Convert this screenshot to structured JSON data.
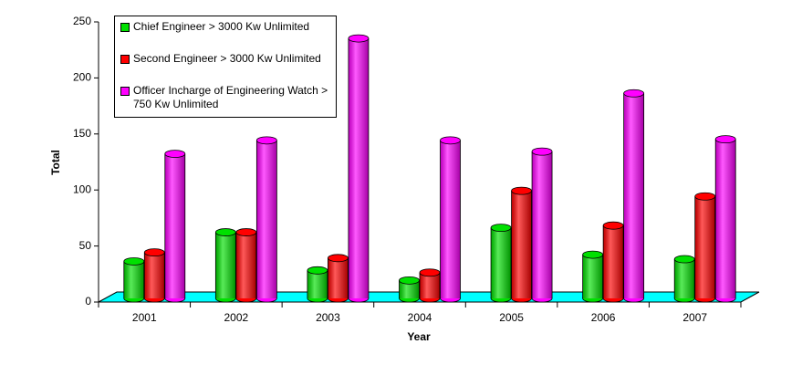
{
  "chart_data": {
    "type": "bar3d",
    "x_label": "Year",
    "y_label": "Total",
    "categories": [
      "2001",
      "2002",
      "2003",
      "2004",
      "2005",
      "2006",
      "2007"
    ],
    "series": [
      {
        "name": "Chief Engineer > 3000 Kw Unlimited",
        "color": "#00e000",
        "values": [
          33,
          59,
          25,
          16,
          63,
          39,
          35
        ]
      },
      {
        "name": "Second Engineer > 3000 Kw Unlimited",
        "color": "#ff0000",
        "values": [
          41,
          59,
          36,
          23,
          96,
          65,
          91
        ]
      },
      {
        "name": "Officer Incharge of Engineering Watch > 750 Kw Unlimited",
        "color": "#ff00ff",
        "values": [
          129,
          141,
          232,
          141,
          131,
          183,
          142
        ]
      }
    ],
    "ylim": [
      0,
      250
    ],
    "yticks": [
      0,
      50,
      100,
      150,
      200,
      250
    ],
    "floor_color": "#00ffff"
  }
}
